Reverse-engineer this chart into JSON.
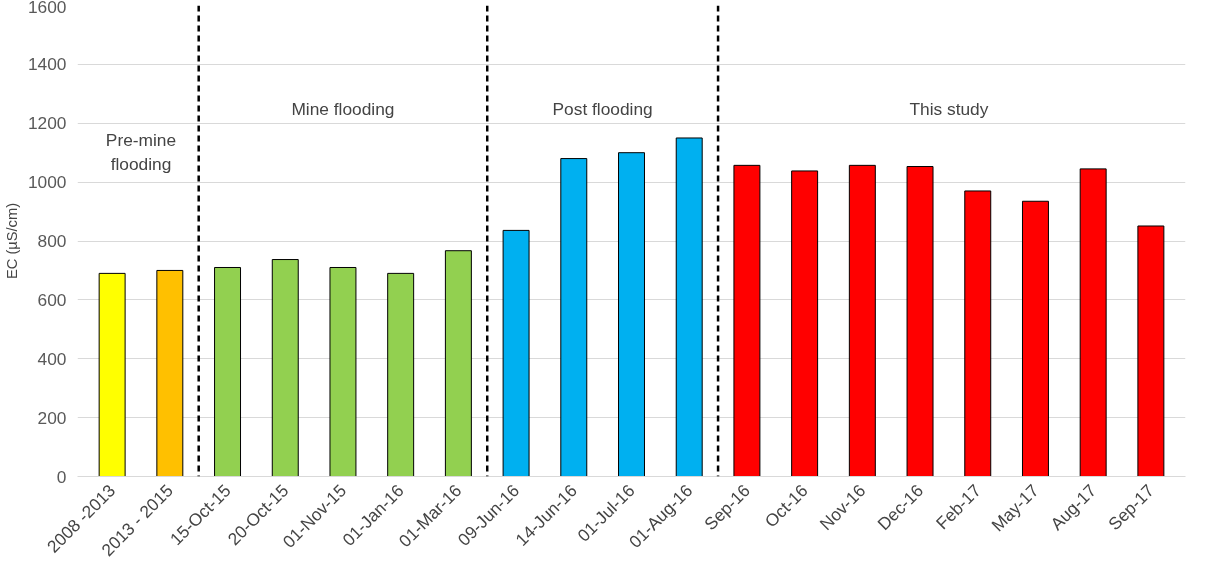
{
  "chart_data": {
    "type": "bar",
    "ylabel": "EC (µS/cm)",
    "categories": [
      "2008 -2013",
      "2013 - 2015",
      "15-Oct-15",
      "20-Oct-15",
      "01-Nov-15",
      "01-Jan-16",
      "01-Mar-16",
      "09-Jun-16",
      "14-Jun-16",
      "01-Jul-16",
      "01-Aug-16",
      "Sep-16",
      "Oct-16",
      "Nov-16",
      "Dec-16",
      "Feb-17",
      "May-17",
      "Aug-17",
      "Sep-17"
    ],
    "values": [
      690,
      700,
      710,
      737,
      710,
      690,
      767,
      836,
      1080,
      1100,
      1150,
      1057,
      1038,
      1057,
      1053,
      970,
      935,
      1045,
      851
    ],
    "colors": [
      "#ffff00",
      "#ffc000",
      "#92d050",
      "#92d050",
      "#92d050",
      "#92d050",
      "#92d050",
      "#00b0f0",
      "#00b0f0",
      "#00b0f0",
      "#00b0f0",
      "#ff0000",
      "#ff0000",
      "#ff0000",
      "#ff0000",
      "#ff0000",
      "#ff0000",
      "#ff0000",
      "#ff0000"
    ],
    "ylim": [
      0,
      1600
    ],
    "yticks": [
      0,
      200,
      400,
      600,
      800,
      1000,
      1200,
      1400,
      1600
    ],
    "grid": "y",
    "annotations": [
      "Pre-mine\nflooding",
      "Mine flooding",
      "Post flooding",
      "This study"
    ]
  }
}
